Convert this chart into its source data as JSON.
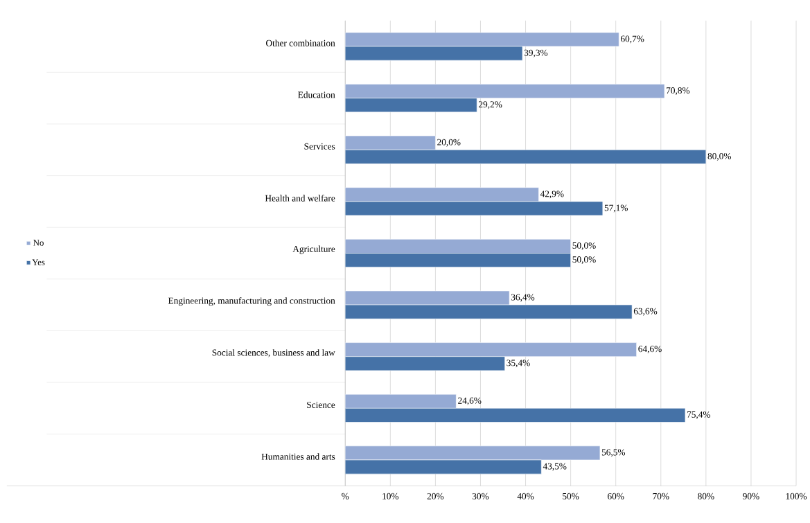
{
  "chart_data": {
    "type": "bar",
    "orientation": "horizontal",
    "categories": [
      "Other combination",
      "Education",
      "Services",
      "Health and welfare",
      "Agriculture",
      "Engineering, manufacturing  and construction",
      "Social sciences, business  and law",
      "Science",
      "Humanities and arts"
    ],
    "series": [
      {
        "name": "No",
        "color": "#95aad4",
        "values": [
          60.7,
          70.8,
          20.0,
          42.9,
          50.0,
          36.4,
          64.6,
          24.6,
          56.5
        ],
        "value_labels": [
          "60,7%",
          "70,8%",
          "20,0%",
          "42,9%",
          "50,0%",
          "36,4%",
          "64,6%",
          "24,6%",
          "56,5%"
        ]
      },
      {
        "name": "Yes",
        "color": "#4572a7",
        "values": [
          39.3,
          29.2,
          80.0,
          57.1,
          50.0,
          63.6,
          35.4,
          75.4,
          43.5
        ],
        "value_labels": [
          "39,3%",
          "29,2%",
          "80,0%",
          "57,1%",
          "50,0%",
          "63,6%",
          "35,4%",
          "75,4%",
          "43,5%"
        ]
      }
    ],
    "xlim": [
      0,
      100
    ],
    "xticks": [
      {
        "value": 0,
        "label": "%"
      },
      {
        "value": 10,
        "label": "10%"
      },
      {
        "value": 20,
        "label": "20%"
      },
      {
        "value": 30,
        "label": "30%"
      },
      {
        "value": 40,
        "label": "40%"
      },
      {
        "value": 50,
        "label": "50%"
      },
      {
        "value": 60,
        "label": "60%"
      },
      {
        "value": 70,
        "label": "70%"
      },
      {
        "value": 80,
        "label": "80%"
      },
      {
        "value": 90,
        "label": "90%"
      },
      {
        "value": 100,
        "label": "100%"
      }
    ],
    "grid": "x",
    "legend": "left"
  }
}
